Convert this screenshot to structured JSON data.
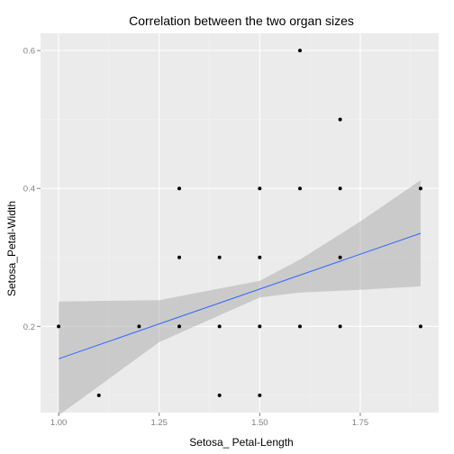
{
  "chart_data": {
    "type": "scatter",
    "title": "Correlation between the two organ sizes",
    "xlabel": "Setosa_ Petal-Length",
    "ylabel": "Setosa_Petal-Width",
    "xlim": [
      0.955,
      1.945
    ],
    "ylim": [
      0.075,
      0.625
    ],
    "x_ticks": [
      1.0,
      1.25,
      1.5,
      1.75
    ],
    "x_tick_labels": [
      "1.00",
      "1.25",
      "1.50",
      "1.75"
    ],
    "y_ticks": [
      0.2,
      0.4,
      0.6
    ],
    "y_tick_labels": [
      "0.2",
      "0.4",
      "0.6"
    ],
    "grid": true,
    "points": [
      {
        "x": 1.0,
        "y": 0.2
      },
      {
        "x": 1.1,
        "y": 0.1
      },
      {
        "x": 1.2,
        "y": 0.2
      },
      {
        "x": 1.3,
        "y": 0.2
      },
      {
        "x": 1.3,
        "y": 0.3
      },
      {
        "x": 1.3,
        "y": 0.4
      },
      {
        "x": 1.4,
        "y": 0.1
      },
      {
        "x": 1.4,
        "y": 0.2
      },
      {
        "x": 1.4,
        "y": 0.3
      },
      {
        "x": 1.5,
        "y": 0.1
      },
      {
        "x": 1.5,
        "y": 0.2
      },
      {
        "x": 1.5,
        "y": 0.3
      },
      {
        "x": 1.5,
        "y": 0.4
      },
      {
        "x": 1.6,
        "y": 0.2
      },
      {
        "x": 1.6,
        "y": 0.4
      },
      {
        "x": 1.6,
        "y": 0.6
      },
      {
        "x": 1.7,
        "y": 0.2
      },
      {
        "x": 1.7,
        "y": 0.3
      },
      {
        "x": 1.7,
        "y": 0.4
      },
      {
        "x": 1.7,
        "y": 0.5
      },
      {
        "x": 1.9,
        "y": 0.2
      },
      {
        "x": 1.9,
        "y": 0.4
      }
    ],
    "fit_line": {
      "method": "lm",
      "x": [
        1.0,
        1.9
      ],
      "y": [
        0.153,
        0.335
      ]
    },
    "confidence_band": {
      "x": [
        1.0,
        1.25,
        1.5,
        1.6,
        1.75,
        1.9
      ],
      "upper": [
        0.236,
        0.238,
        0.266,
        0.297,
        0.352,
        0.412
      ],
      "lower": [
        0.071,
        0.177,
        0.242,
        0.249,
        0.253,
        0.258
      ]
    },
    "colors": {
      "panel_background": "#ebebeb",
      "grid_major": "#ffffff",
      "grid_minor": "#f2f2f2",
      "points": "#000000",
      "fit_line": "#3366ff",
      "band": "#999999",
      "tick_labels": "#7f7f7f"
    }
  }
}
